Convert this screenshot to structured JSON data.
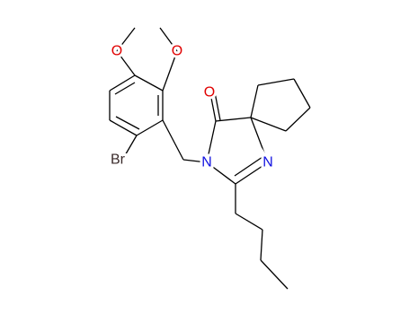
{
  "atoms": [
    "O",
    "O",
    "O",
    "Br",
    "N",
    "N"
  ]
}
